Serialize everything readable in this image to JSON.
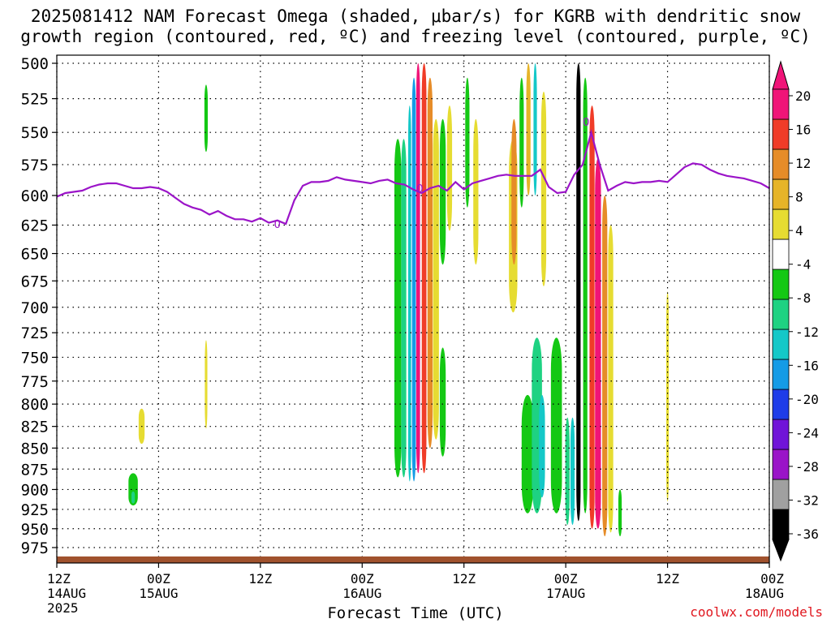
{
  "title_line1": "2025081412 NAM Forecast Omega (shaded, μbar/s) for KGRB with dendritic snow",
  "title_line2": "growth region (contoured, red, ºC) and freezing level (contoured, purple, ºC)",
  "credit": "coolwx.com/models",
  "chart_data": {
    "type": "heatmap",
    "xlabel": "Forecast Time (UTC)",
    "ylabel": "",
    "x_range_hours": [
      0,
      84
    ],
    "y_range_hPa": [
      500,
      990
    ],
    "y_scale": "log-pressure",
    "grid": true,
    "x_ticks": [
      {
        "hour": 0,
        "lines": [
          "12Z",
          "14AUG",
          "2025"
        ]
      },
      {
        "hour": 12,
        "lines": [
          "00Z",
          "15AUG"
        ]
      },
      {
        "hour": 24,
        "lines": [
          "12Z"
        ]
      },
      {
        "hour": 36,
        "lines": [
          "00Z",
          "16AUG"
        ]
      },
      {
        "hour": 48,
        "lines": [
          "12Z"
        ]
      },
      {
        "hour": 60,
        "lines": [
          "00Z",
          "17AUG"
        ]
      },
      {
        "hour": 72,
        "lines": [
          "12Z"
        ]
      },
      {
        "hour": 84,
        "lines": [
          "00Z",
          "18AUG"
        ]
      }
    ],
    "y_ticks": [
      500,
      525,
      550,
      575,
      600,
      625,
      650,
      675,
      700,
      725,
      750,
      775,
      800,
      825,
      850,
      875,
      900,
      925,
      950,
      975
    ],
    "colorbar": {
      "levels": [
        -36,
        -32,
        -28,
        -24,
        -20,
        -16,
        -12,
        -8,
        -4,
        4,
        8,
        12,
        16,
        20
      ],
      "labels": [
        "20",
        "16",
        "12",
        "8",
        "4",
        "-4",
        "-8",
        "-12",
        "-16",
        "-20",
        "-24",
        "-28",
        "-32",
        "-36"
      ],
      "colors": [
        "#000000",
        "#a0a0a0",
        "#9a14c8",
        "#7014d8",
        "#1e3ce8",
        "#149be6",
        "#14c8c8",
        "#1ed282",
        "#14c814",
        "#ffffff",
        "#e6dc32",
        "#e6b428",
        "#e68c28",
        "#f03c28",
        "#f01478"
      ],
      "bin_order": "bottom-to-top"
    },
    "omega_blobs": [
      {
        "hour": 9.0,
        "p": 900,
        "w": 1.1,
        "h": 40,
        "color": "#14c814"
      },
      {
        "hour": 9.0,
        "p": 910,
        "w": 0.4,
        "h": 15,
        "color": "#1ed282"
      },
      {
        "hour": 10.0,
        "p": 825,
        "w": 0.7,
        "h": 40,
        "color": "#e6dc32"
      },
      {
        "hour": 17.6,
        "p": 540,
        "w": 0.4,
        "h": 50,
        "color": "#14c814"
      },
      {
        "hour": 17.6,
        "p": 780,
        "w": 0.3,
        "h": 95,
        "color": "#e6dc32"
      },
      {
        "hour": 40.2,
        "p": 720,
        "w": 0.8,
        "h": 330,
        "color": "#14c814"
      },
      {
        "hour": 40.9,
        "p": 720,
        "w": 0.6,
        "h": 330,
        "color": "#1ed282"
      },
      {
        "hour": 41.6,
        "p": 710,
        "w": 0.35,
        "h": 360,
        "color": "#14c8c8"
      },
      {
        "hour": 42.1,
        "p": 700,
        "w": 0.45,
        "h": 380,
        "color": "#149be6"
      },
      {
        "hour": 42.6,
        "p": 690,
        "w": 0.45,
        "h": 380,
        "color": "#f01478"
      },
      {
        "hour": 43.3,
        "p": 690,
        "w": 0.55,
        "h": 380,
        "color": "#f03c28"
      },
      {
        "hour": 44.0,
        "p": 680,
        "w": 0.6,
        "h": 340,
        "color": "#e68c28"
      },
      {
        "hour": 44.7,
        "p": 690,
        "w": 0.7,
        "h": 300,
        "color": "#e6dc32"
      },
      {
        "hour": 45.5,
        "p": 600,
        "w": 0.7,
        "h": 120,
        "color": "#14c814"
      },
      {
        "hour": 45.5,
        "p": 800,
        "w": 0.7,
        "h": 120,
        "color": "#14c814"
      },
      {
        "hour": 46.3,
        "p": 580,
        "w": 0.6,
        "h": 100,
        "color": "#e6dc32"
      },
      {
        "hour": 48.4,
        "p": 560,
        "w": 0.5,
        "h": 100,
        "color": "#14c814"
      },
      {
        "hour": 49.4,
        "p": 600,
        "w": 0.6,
        "h": 120,
        "color": "#e6dc32"
      },
      {
        "hour": 53.8,
        "p": 630,
        "w": 1.0,
        "h": 150,
        "color": "#e6dc32"
      },
      {
        "hour": 53.9,
        "p": 600,
        "w": 0.6,
        "h": 120,
        "color": "#e68c28"
      },
      {
        "hour": 54.8,
        "p": 560,
        "w": 0.5,
        "h": 100,
        "color": "#14c814"
      },
      {
        "hour": 55.6,
        "p": 550,
        "w": 0.5,
        "h": 100,
        "color": "#e6b428"
      },
      {
        "hour": 56.4,
        "p": 550,
        "w": 0.4,
        "h": 100,
        "color": "#14c8c8"
      },
      {
        "hour": 57.4,
        "p": 600,
        "w": 0.6,
        "h": 160,
        "color": "#e6dc32"
      },
      {
        "hour": 55.5,
        "p": 860,
        "w": 1.4,
        "h": 140,
        "color": "#14c814"
      },
      {
        "hour": 56.6,
        "p": 830,
        "w": 1.2,
        "h": 200,
        "color": "#1ed282"
      },
      {
        "hour": 57.2,
        "p": 850,
        "w": 0.7,
        "h": 120,
        "color": "#14c8c8"
      },
      {
        "hour": 58.9,
        "p": 830,
        "w": 1.3,
        "h": 200,
        "color": "#14c814"
      },
      {
        "hour": 60.2,
        "p": 880,
        "w": 0.5,
        "h": 130,
        "color": "#1ed282"
      },
      {
        "hour": 60.8,
        "p": 880,
        "w": 0.5,
        "h": 130,
        "color": "#14c8c8"
      },
      {
        "hour": 61.5,
        "p": 720,
        "w": 0.5,
        "h": 440,
        "color": "#000000"
      },
      {
        "hour": 62.3,
        "p": 720,
        "w": 0.5,
        "h": 420,
        "color": "#14c814"
      },
      {
        "hour": 63.1,
        "p": 740,
        "w": 0.6,
        "h": 420,
        "color": "#f03c28"
      },
      {
        "hour": 63.8,
        "p": 760,
        "w": 0.7,
        "h": 380,
        "color": "#f01478"
      },
      {
        "hour": 64.6,
        "p": 780,
        "w": 0.6,
        "h": 360,
        "color": "#e68c28"
      },
      {
        "hour": 65.3,
        "p": 790,
        "w": 0.6,
        "h": 330,
        "color": "#e6dc32"
      },
      {
        "hour": 66.4,
        "p": 930,
        "w": 0.4,
        "h": 60,
        "color": "#14c814"
      },
      {
        "hour": 72.0,
        "p": 800,
        "w": 0.3,
        "h": 230,
        "color": "#e6dc32"
      }
    ],
    "freezing_level": {
      "name": "freezing level",
      "color": "#9b14c8",
      "hours": [
        0,
        1,
        2,
        3,
        4,
        5,
        6,
        7,
        8,
        9,
        10,
        11,
        12,
        13,
        14,
        15,
        16,
        17,
        18,
        19,
        20,
        21,
        22,
        23,
        24,
        25,
        26,
        27,
        28,
        29,
        30,
        31,
        32,
        33,
        34,
        35,
        36,
        37,
        38,
        39,
        40,
        41,
        42,
        43,
        44,
        45,
        46,
        47,
        48,
        49,
        50,
        51,
        52,
        53,
        54,
        55,
        56,
        57,
        58,
        59,
        60,
        61,
        62,
        63,
        64,
        65,
        66,
        67,
        68,
        69,
        70,
        71,
        72,
        73,
        74,
        75,
        76,
        77,
        78,
        79,
        80,
        81,
        82,
        83,
        84
      ],
      "pressure": [
        601,
        598,
        597,
        596,
        593,
        591,
        590,
        590,
        592,
        594,
        594,
        593,
        594,
        597,
        602,
        607,
        610,
        612,
        616,
        613,
        617,
        620,
        620,
        622,
        619,
        623,
        621,
        624,
        604,
        592,
        589,
        589,
        588,
        585,
        587,
        588,
        589,
        590,
        588,
        587,
        590,
        591,
        595,
        598,
        594,
        592,
        596,
        589,
        595,
        590,
        588,
        586,
        584,
        583,
        584,
        584,
        584,
        579,
        593,
        598,
        597,
        583,
        575,
        550,
        575,
        596,
        592,
        589,
        590,
        589,
        589,
        588,
        589,
        583,
        577,
        574,
        575,
        579,
        582,
        584,
        585,
        586,
        588,
        590,
        594
      ]
    },
    "freezing_label": "0",
    "freezing_label_positions": [
      {
        "hour": 26.0,
        "p": 624
      },
      {
        "hour": 42.8,
        "p": 594
      },
      {
        "hour": 62.4,
        "p": 542
      }
    ],
    "dgz_contour": {
      "name": "dendritic snow growth region",
      "color": "#e0161e",
      "segments": []
    },
    "ground_color": "#a0522d"
  }
}
